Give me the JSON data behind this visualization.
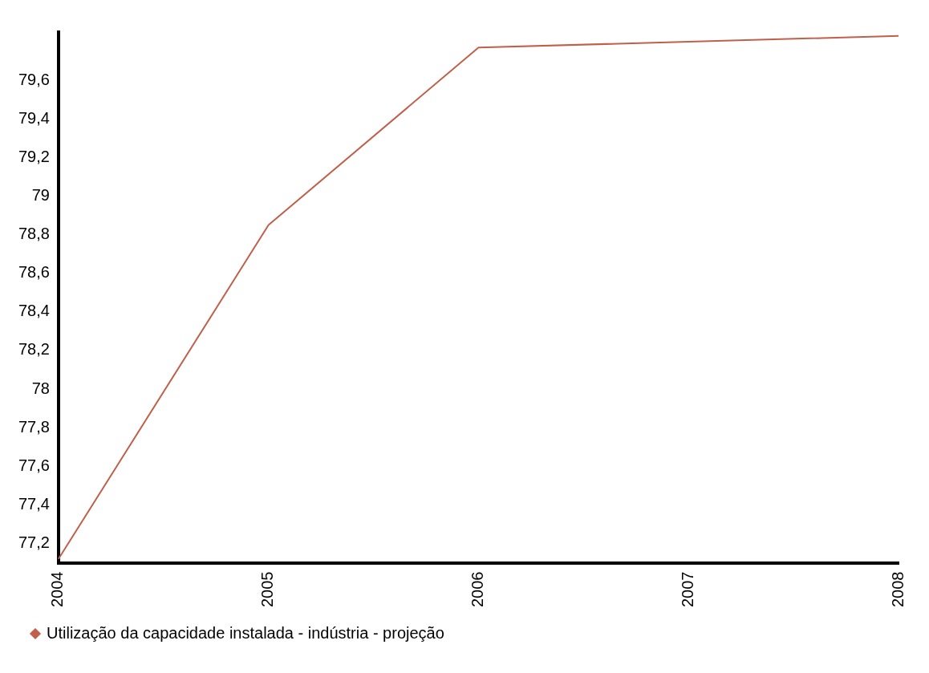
{
  "chart_data": {
    "type": "line",
    "categories": [
      "2004",
      "2005",
      "2006",
      "2007",
      "2008"
    ],
    "series": [
      {
        "name": "Utilização da capacidade instalada - indústria - projeção",
        "color": "#c0604a",
        "values": [
          77.12,
          78.85,
          79.77,
          79.8,
          79.83
        ]
      }
    ],
    "ylim": [
      77.1,
      79.85
    ],
    "yticks": [
      {
        "value": 77.2,
        "label": "77,2"
      },
      {
        "value": 77.4,
        "label": "77,4"
      },
      {
        "value": 77.6,
        "label": "77,6"
      },
      {
        "value": 77.8,
        "label": "77,8"
      },
      78,
      {
        "value": 78.2,
        "label": "78,2"
      },
      {
        "value": 78.4,
        "label": "78,4"
      },
      {
        "value": 78.6,
        "label": "78,6"
      },
      {
        "value": 78.8,
        "label": "78,8"
      },
      79,
      {
        "value": 79.2,
        "label": "79,2"
      },
      {
        "value": 79.4,
        "label": "79,4"
      },
      {
        "value": 79.6,
        "label": "79,6"
      }
    ],
    "grid": false,
    "legend": "bottom left",
    "marker": "none",
    "line_style": "solid"
  }
}
